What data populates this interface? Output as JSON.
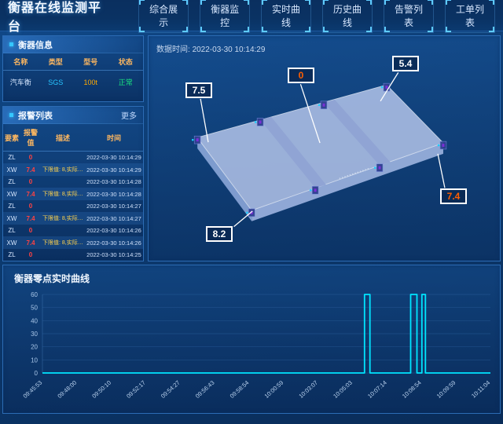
{
  "header": {
    "title": "衡器在线监测平台",
    "tabs": [
      "综合展示",
      "衡器监控",
      "实时曲线",
      "历史曲线",
      "告警列表",
      "工单列表"
    ]
  },
  "device_panel": {
    "title": "衡器信息",
    "columns": [
      "名称",
      "类型",
      "型号",
      "状态"
    ],
    "rows": [
      {
        "name": "汽车衡",
        "type": "SGS",
        "model": "100t",
        "status": "正常"
      }
    ]
  },
  "alarm_panel": {
    "title": "报警列表",
    "more": "更多",
    "columns": [
      "要素",
      "报警值",
      "描述",
      "时间"
    ],
    "rows": [
      {
        "element": "ZL",
        "value": "0",
        "desc": "",
        "time": "2022-03-30 10:14:29"
      },
      {
        "element": "XW",
        "value": "7.4",
        "desc": "下限值: 8,实际值: 7.4",
        "time": "2022-03-30 10:14:29"
      },
      {
        "element": "ZL",
        "value": "0",
        "desc": "",
        "time": "2022-03-30 10:14:28"
      },
      {
        "element": "XW",
        "value": "7.4",
        "desc": "下限值: 8,实际值: 7.4",
        "time": "2022-03-30 10:14:28"
      },
      {
        "element": "ZL",
        "value": "0",
        "desc": "",
        "time": "2022-03-30 10:14:27"
      },
      {
        "element": "XW",
        "value": "7.4",
        "desc": "下限值: 8,实际值: 7.4",
        "time": "2022-03-30 10:14:27"
      },
      {
        "element": "ZL",
        "value": "0",
        "desc": "",
        "time": "2022-03-30 10:14:26"
      },
      {
        "element": "XW",
        "value": "7.4",
        "desc": "下限值: 8,实际值: 7.4",
        "time": "2022-03-30 10:14:26"
      },
      {
        "element": "ZL",
        "value": "0",
        "desc": "",
        "time": "2022-03-30 10:14:25"
      }
    ]
  },
  "scene": {
    "data_time_label": "数据时间:",
    "data_time": "2022-03-30 10:14:29",
    "sensor_labels": [
      {
        "value": "7.5",
        "alarm": false
      },
      {
        "value": "0",
        "alarm": true
      },
      {
        "value": "5.4",
        "alarm": false
      },
      {
        "value": "8.2",
        "alarm": false
      },
      {
        "value": "7.4",
        "alarm": true
      }
    ]
  },
  "chart_data": {
    "type": "line",
    "title": "衡器零点实时曲线",
    "xlabel": "",
    "ylabel": "",
    "ylim": [
      0,
      60
    ],
    "yticks": [
      0,
      10,
      20,
      30,
      40,
      50,
      60
    ],
    "grid": true,
    "legend": false,
    "x_tick_labels": [
      "09:45:53",
      "09:48:00",
      "09:50:10",
      "09:52:17",
      "09:54:27",
      "09:56:43",
      "09:58:54",
      "10:00:59",
      "10:03:07",
      "10:05:03",
      "10:07:14",
      "10:08:54",
      "10:09:59",
      "10:11:04"
    ],
    "series": [
      {
        "name": "零点值",
        "color": "#00e5ff",
        "points_frac_value": [
          [
            0,
            0
          ],
          [
            0.719,
            0
          ],
          [
            0.719,
            60
          ],
          [
            0.731,
            60
          ],
          [
            0.731,
            0
          ],
          [
            0.822,
            0
          ],
          [
            0.822,
            60
          ],
          [
            0.836,
            60
          ],
          [
            0.836,
            0
          ],
          [
            0.847,
            0
          ],
          [
            0.847,
            60
          ],
          [
            0.855,
            60
          ],
          [
            0.855,
            0
          ],
          [
            1,
            0
          ]
        ]
      }
    ]
  },
  "colors": {
    "accent_cyan": "#00e5ff",
    "alarm_red": "#ff4242",
    "warn_yellow": "#ffd34d",
    "ok_green": "#19e57f",
    "column_header_orange": "#ffb860",
    "alarm_label_orange": "#ff5e00",
    "grid_blue": "#2d629f"
  }
}
